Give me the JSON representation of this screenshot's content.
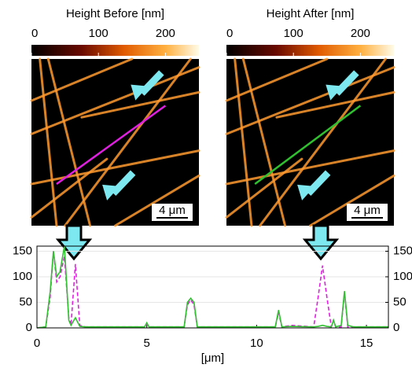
{
  "panels": [
    {
      "title": "Height Before [nm]",
      "colorbar": {
        "lim": [
          0,
          250
        ],
        "ticks": [
          0,
          100,
          200
        ]
      },
      "scalebar": "4 μm"
    },
    {
      "title": "Height After [nm]",
      "colorbar": {
        "lim": [
          0,
          250
        ],
        "ticks": [
          0,
          100,
          200
        ]
      },
      "scalebar": "4 μm"
    }
  ],
  "chart_data": {
    "type": "line",
    "x_label": "[μm]",
    "x": [
      0,
      0.4,
      0.6,
      0.75,
      0.9,
      1.05,
      1.25,
      1.45,
      1.55,
      1.75,
      1.95,
      2.2,
      4.9,
      5.0,
      5.1,
      6.7,
      6.85,
      7.0,
      7.15,
      7.3,
      10.85,
      11.0,
      11.15,
      11.6,
      12.6,
      12.8,
      13.0,
      13.2,
      13.4,
      13.5,
      13.6,
      13.85,
      14.0,
      14.15,
      14.4,
      16
    ],
    "series": [
      {
        "color": "#e020e0",
        "dashed": true,
        "values": [
          0,
          2,
          60,
          150,
          90,
          100,
          140,
          20,
          5,
          125,
          5,
          2,
          2,
          8,
          2,
          2,
          45,
          55,
          45,
          2,
          2,
          30,
          2,
          5,
          2,
          60,
          122,
          60,
          2,
          15,
          2,
          2,
          70,
          2,
          2,
          2
        ]
      },
      {
        "color": "#30c030",
        "axis": "y2",
        "values": [
          0,
          2,
          70,
          150,
          100,
          110,
          160,
          15,
          5,
          20,
          3,
          2,
          2,
          10,
          2,
          2,
          50,
          58,
          50,
          2,
          2,
          35,
          2,
          3,
          2,
          3,
          5,
          3,
          2,
          15,
          2,
          5,
          72,
          5,
          2,
          2
        ]
      }
    ],
    "xlim": [
      0,
      16
    ],
    "xticks": [
      0,
      5,
      10,
      15
    ],
    "ylim": [
      0,
      160
    ],
    "yticks": [
      0,
      50,
      100,
      150
    ],
    "ycolor": "#e020e0",
    "y2lim": [
      0,
      160
    ],
    "y2ticks": [
      0,
      50,
      100,
      150
    ],
    "y2color": "#30c030",
    "grid": true
  }
}
